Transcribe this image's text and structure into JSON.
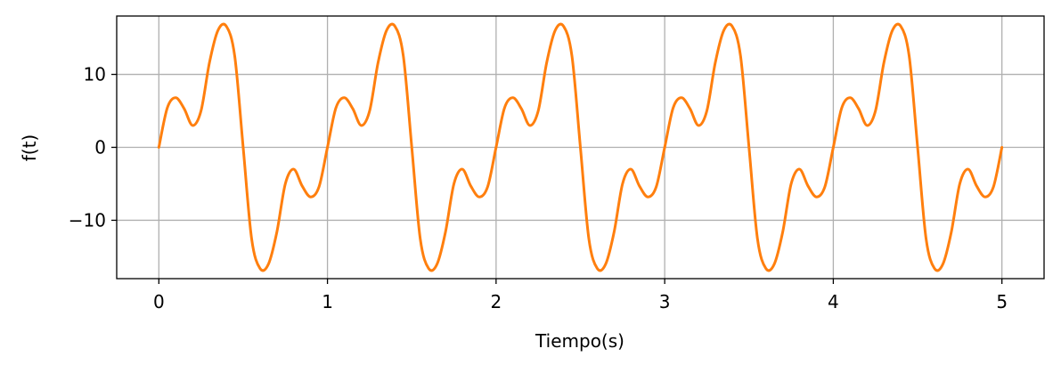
{
  "chart_data": {
    "type": "line",
    "title": "",
    "xlabel": "Tiempo(s)",
    "ylabel": "f(t)",
    "xlim": [
      -0.25,
      5.25
    ],
    "ylim": [
      -18,
      18
    ],
    "x_ticks": [
      0,
      1,
      2,
      3,
      4,
      5
    ],
    "x_tick_labels": [
      "0",
      "1",
      "2",
      "3",
      "4",
      "5"
    ],
    "y_ticks": [
      -10,
      0,
      10
    ],
    "y_tick_labels": [
      "−10",
      "0",
      "10"
    ],
    "grid": true,
    "legend": "none",
    "line_color": "#ff7f0e",
    "grid_color": "#b0b0b0",
    "series": [
      {
        "x": [
          0,
          0.05,
          0.1,
          0.15,
          0.2,
          0.25,
          0.3,
          0.35,
          0.4,
          0.45,
          0.5,
          0.55,
          0.6,
          0.65,
          0.7,
          0.75,
          0.8,
          0.85,
          0.9,
          0.95,
          1.0,
          1.05,
          1.1,
          1.15,
          1.2,
          1.25,
          1.3,
          1.35,
          1.4,
          1.45,
          1.5,
          1.55,
          1.6,
          1.65,
          1.7,
          1.75,
          1.8,
          1.85,
          1.9,
          1.95,
          2.0,
          2.05,
          2.1,
          2.15,
          2.2,
          2.25,
          2.3,
          2.35,
          2.4,
          2.45,
          2.5,
          2.55,
          2.6,
          2.65,
          2.7,
          2.75,
          2.8,
          2.85,
          2.9,
          2.95,
          3.0,
          3.05,
          3.1,
          3.15,
          3.2,
          3.25,
          3.3,
          3.35,
          3.4,
          3.45,
          3.5,
          3.55,
          3.6,
          3.65,
          3.7,
          3.75,
          3.8,
          3.85,
          3.9,
          3.95,
          4.0,
          4.05,
          4.1,
          4.15,
          4.2,
          4.25,
          4.3,
          4.35,
          4.4,
          4.45,
          4.5,
          4.55,
          4.6,
          4.65,
          4.7,
          4.75,
          4.8,
          4.85,
          4.9,
          4.95,
          5.0
        ],
        "y": [
          0,
          5.4,
          6.8,
          5.3,
          3.0,
          5.0,
          11.6,
          16.0,
          16.6,
          12.5,
          0,
          -12.5,
          -16.6,
          -16.0,
          -11.6,
          -5.0,
          -3.0,
          -5.3,
          -6.8,
          -5.4,
          0,
          5.4,
          6.8,
          5.3,
          3.0,
          5.0,
          11.6,
          16.0,
          16.6,
          12.5,
          0,
          -12.5,
          -16.6,
          -16.0,
          -11.6,
          -5.0,
          -3.0,
          -5.3,
          -6.8,
          -5.4,
          0,
          5.4,
          6.8,
          5.3,
          3.0,
          5.0,
          11.6,
          16.0,
          16.6,
          12.5,
          0,
          -12.5,
          -16.6,
          -16.0,
          -11.6,
          -5.0,
          -3.0,
          -5.3,
          -6.8,
          -5.4,
          0,
          5.4,
          6.8,
          5.3,
          3.0,
          5.0,
          11.6,
          16.0,
          16.6,
          12.5,
          0,
          -12.5,
          -16.6,
          -16.0,
          -11.6,
          -5.0,
          -3.0,
          -5.3,
          -6.8,
          -5.4,
          0,
          5.4,
          6.8,
          5.3,
          3.0,
          5.0,
          11.6,
          16.0,
          16.6,
          12.5,
          0,
          -12.5,
          -16.6,
          -16.0,
          -11.6,
          -5.0,
          -3.0,
          -5.3,
          -6.8,
          -5.4,
          0
        ]
      }
    ]
  }
}
